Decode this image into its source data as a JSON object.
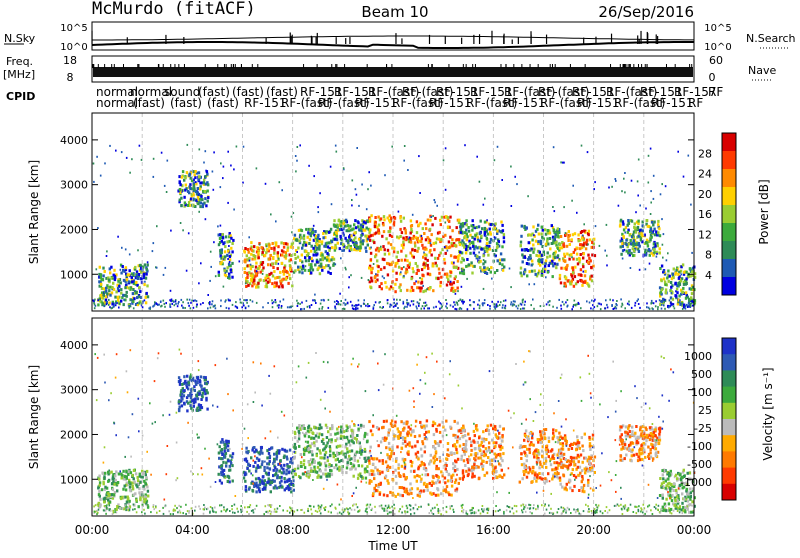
{
  "header": {
    "station": "McMurdo (fitACF)",
    "beam": "Beam 10",
    "date": "26/Sep/2016"
  },
  "sky_noise": {
    "left_label": "N.Sky",
    "right_label": "N.Search",
    "left_ticks": [
      "10^5",
      "10^0"
    ],
    "right_ticks": [
      "10^5",
      "10^0"
    ],
    "right_line_style": "dotted"
  },
  "freq_nave": {
    "left_label_1": "Freq.",
    "left_label_2": "[MHz]",
    "right_label": "Nave",
    "left_ticks": [
      "18",
      "8"
    ],
    "right_ticks": [
      "60",
      "0"
    ],
    "right_line_style": "dotted"
  },
  "cpid": {
    "label": "CPID",
    "row1": [
      "normal",
      "normal",
      "sound",
      "(fast)",
      "(fast)",
      "(fast)",
      "RF-151",
      "RF-151",
      "RF-(fast)",
      "RF-(fast)",
      "RF-151",
      "RF-151",
      "RF-(fast)",
      "RF-(fast)",
      "RF-151",
      "RF-(fast)",
      "RF-151",
      "RF-157",
      "RF"
    ],
    "row2": [
      "normal",
      "(fast)",
      "(fast)",
      "(fast)",
      "RF-151",
      "RF-(fast)",
      "RF-(fast)",
      "RF-151",
      "RF-(fast)",
      "RF-151",
      "RF-(fast)",
      "RF-151",
      "RF-(fast)",
      "RF-151",
      "RF-(fast)",
      "RF-151",
      "RF"
    ]
  },
  "chart_data": [
    {
      "type": "heatmap",
      "name": "power",
      "ylabel": "Slant Range [km]",
      "xlabel": "Time UT",
      "xlim": [
        "00:00",
        "24:00"
      ],
      "ylim": [
        180,
        4600
      ],
      "yticks": [
        1000,
        2000,
        3000,
        4000
      ],
      "grid": "dashed vertical at 2 h",
      "colorbar": {
        "label": "Power [dB]",
        "ticks": [
          "28",
          "24",
          "20",
          "16",
          "12",
          "8",
          "4"
        ],
        "colors": [
          "#d80000",
          "#ff3a00",
          "#ff8a00",
          "#ffd000",
          "#9acd32",
          "#3caa3c",
          "#2e8b57",
          "#1e5ab4",
          "#0000e0"
        ]
      },
      "scatter_bands": [
        {
          "t0": 0.2,
          "t1": 2.2,
          "r0": 300,
          "r1": 1200,
          "level": "mid"
        },
        {
          "t0": 3.4,
          "t1": 4.6,
          "r0": 2500,
          "r1": 3300,
          "level": "mid"
        },
        {
          "t0": 5.0,
          "t1": 5.6,
          "r0": 900,
          "r1": 1900,
          "level": "mid"
        },
        {
          "t0": 6.0,
          "t1": 8.0,
          "r0": 700,
          "r1": 1700,
          "level": "high"
        },
        {
          "t0": 8.0,
          "t1": 9.6,
          "r0": 1000,
          "r1": 2000,
          "level": "mid"
        },
        {
          "t0": 9.6,
          "t1": 11.0,
          "r0": 1500,
          "r1": 2200,
          "level": "mid"
        },
        {
          "t0": 11.0,
          "t1": 14.6,
          "r0": 600,
          "r1": 2300,
          "level": "high"
        },
        {
          "t0": 14.6,
          "t1": 16.4,
          "r0": 1000,
          "r1": 2200,
          "level": "mid"
        },
        {
          "t0": 17.0,
          "t1": 18.6,
          "r0": 900,
          "r1": 2100,
          "level": "mid"
        },
        {
          "t0": 18.6,
          "t1": 20.0,
          "r0": 700,
          "r1": 2000,
          "level": "high"
        },
        {
          "t0": 21.0,
          "t1": 22.6,
          "r0": 1400,
          "r1": 2200,
          "level": "mid"
        },
        {
          "t0": 22.6,
          "t1": 24.0,
          "r0": 250,
          "r1": 1200,
          "level": "mid"
        }
      ]
    },
    {
      "type": "heatmap",
      "name": "velocity",
      "ylabel": "Slant Range [km]",
      "xlabel": "Time UT",
      "xlim": [
        "00:00",
        "24:00"
      ],
      "ylim": [
        180,
        4600
      ],
      "yticks": [
        1000,
        2000,
        3000,
        4000
      ],
      "xticks": [
        "00:00",
        "04:00",
        "08:00",
        "12:00",
        "16:00",
        "20:00",
        "00:00"
      ],
      "colorbar": {
        "label": "Velocity [m s⁻¹]",
        "ticks": [
          "1000",
          "500",
          "100",
          "25",
          "-25",
          "-100",
          "-500",
          "-1000"
        ],
        "colors": [
          "#1e32c8",
          "#2e5ab4",
          "#2e8b57",
          "#3caa3c",
          "#9acd32",
          "#bbbbbb",
          "#ffaa00",
          "#ff7a00",
          "#ff3a00",
          "#d80000"
        ]
      },
      "scatter_bands": [
        {
          "t0": 0.2,
          "t1": 2.2,
          "r0": 300,
          "r1": 1200,
          "level": "green"
        },
        {
          "t0": 3.4,
          "t1": 4.6,
          "r0": 2500,
          "r1": 3300,
          "level": "blue"
        },
        {
          "t0": 5.0,
          "t1": 5.6,
          "r0": 900,
          "r1": 1900,
          "level": "blue"
        },
        {
          "t0": 6.0,
          "t1": 8.0,
          "r0": 700,
          "r1": 1700,
          "level": "blue"
        },
        {
          "t0": 8.0,
          "t1": 11.0,
          "r0": 1000,
          "r1": 2200,
          "level": "green"
        },
        {
          "t0": 11.0,
          "t1": 14.6,
          "r0": 600,
          "r1": 2300,
          "level": "orange"
        },
        {
          "t0": 14.6,
          "t1": 16.4,
          "r0": 1000,
          "r1": 2200,
          "level": "orange"
        },
        {
          "t0": 17.0,
          "t1": 18.6,
          "r0": 900,
          "r1": 2100,
          "level": "orange"
        },
        {
          "t0": 18.6,
          "t1": 20.0,
          "r0": 700,
          "r1": 2000,
          "level": "orange"
        },
        {
          "t0": 21.0,
          "t1": 22.6,
          "r0": 1400,
          "r1": 2200,
          "level": "orange"
        },
        {
          "t0": 22.6,
          "t1": 24.0,
          "r0": 250,
          "r1": 1200,
          "level": "green"
        }
      ]
    }
  ]
}
